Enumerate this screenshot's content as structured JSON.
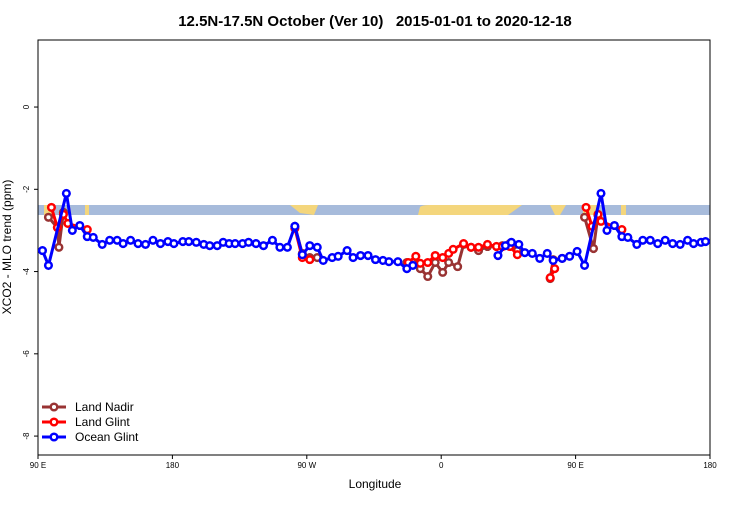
{
  "chart_data": {
    "type": "line",
    "title": "12.5N-17.5N October (Ver 10)   2015-01-01 to 2020-12-18",
    "x_label": "Longitude",
    "y_label": "XCO2 - MLO trend (ppm)",
    "xlim": [
      90,
      540
    ],
    "ylim": [
      -8.46,
      1.63
    ],
    "xticks": [
      {
        "value": 90,
        "label": "90 E"
      },
      180,
      {
        "value": 270,
        "label": "90 W"
      },
      {
        "value": 360,
        "label": "0"
      },
      {
        "value": 450,
        "label": "90 E"
      },
      {
        "value": 540,
        "label": "180"
      }
    ],
    "yticks": [
      0,
      -2,
      -4,
      -6,
      -8
    ],
    "legend": "bottom-left",
    "series": [
      {
        "name": "Land Nadir",
        "color": "#993333",
        "x": [
          97,
          103,
          104,
          107,
          null,
          262,
          267,
          272,
          277,
          null,
          337,
          341,
          346,
          351,
          356,
          361,
          365,
          371,
          375,
          380,
          385,
          391,
          401,
          406,
          411,
          null,
          433,
          435,
          441,
          null,
          456,
          462,
          465
        ],
        "values": [
          -2.68,
          -2.93,
          -3.41,
          -2.56,
          null,
          -2.9,
          -3.56,
          -3.66,
          -3.66,
          null,
          -3.78,
          -3.78,
          -3.93,
          -4.12,
          -3.78,
          -4.02,
          -3.78,
          -3.88,
          -3.34,
          -3.41,
          -3.49,
          -3.39,
          -3.37,
          -3.32,
          -3.49,
          null,
          -4.17,
          -3.71,
          -3.68,
          null,
          -2.68,
          -3.44,
          -2.63
        ]
      },
      {
        "name": "Land Glint",
        "color": "#ff0000",
        "x": [
          99,
          103,
          107,
          110,
          123,
          null,
          262,
          267,
          272,
          null,
          338,
          343,
          346,
          351,
          356,
          361,
          365,
          368,
          375,
          380,
          385,
          391,
          397,
          401,
          406,
          411,
          null,
          433,
          436,
          null,
          457,
          461,
          465,
          467,
          481
        ],
        "values": [
          -2.44,
          -2.93,
          -2.61,
          -2.83,
          -2.98,
          null,
          -2.95,
          -3.66,
          -3.71,
          null,
          -3.78,
          -3.63,
          -3.8,
          -3.78,
          -3.61,
          -3.66,
          -3.56,
          -3.46,
          -3.32,
          -3.41,
          -3.41,
          -3.34,
          -3.39,
          -3.39,
          -3.39,
          -3.59,
          null,
          -4.15,
          -3.93,
          null,
          -2.44,
          -2.9,
          -2.61,
          -2.78,
          -2.98
        ]
      },
      {
        "name": "Ocean Glint",
        "color": "#0000ff",
        "x": [
          93,
          97,
          109,
          113,
          118,
          123,
          127,
          133,
          138,
          143,
          147,
          152,
          157,
          162,
          167,
          172,
          177,
          181,
          187,
          191,
          196,
          201,
          205,
          210,
          214,
          218,
          222,
          227,
          231,
          236,
          241,
          247,
          252,
          257,
          262,
          267,
          272,
          277,
          281,
          287,
          291,
          297,
          301,
          306,
          311,
          316,
          321,
          325,
          331,
          337,
          341,
          null,
          398,
          403,
          407,
          412,
          416,
          421,
          426,
          431,
          435,
          441,
          446,
          451,
          456,
          467,
          471,
          476,
          481,
          485,
          491,
          495,
          500,
          505,
          510,
          515,
          520,
          525,
          529,
          534,
          537
        ],
        "values": [
          -3.49,
          -3.85,
          -2.1,
          -3.0,
          -2.88,
          -3.15,
          -3.17,
          -3.34,
          -3.24,
          -3.24,
          -3.32,
          -3.24,
          -3.32,
          -3.34,
          -3.24,
          -3.32,
          -3.27,
          -3.32,
          -3.27,
          -3.27,
          -3.29,
          -3.34,
          -3.37,
          -3.37,
          -3.29,
          -3.32,
          -3.32,
          -3.32,
          -3.29,
          -3.32,
          -3.37,
          -3.24,
          -3.41,
          -3.41,
          -2.9,
          -3.59,
          -3.37,
          -3.41,
          -3.73,
          -3.66,
          -3.63,
          -3.49,
          -3.66,
          -3.61,
          -3.61,
          -3.71,
          -3.73,
          -3.76,
          -3.76,
          -3.93,
          -3.85,
          null,
          -3.61,
          -3.37,
          -3.29,
          -3.34,
          -3.54,
          -3.56,
          -3.68,
          -3.56,
          -3.73,
          -3.68,
          -3.63,
          -3.51,
          -3.85,
          -2.1,
          -3.0,
          -2.88,
          -3.15,
          -3.17,
          -3.34,
          -3.24,
          -3.24,
          -3.32,
          -3.24,
          -3.32,
          -3.34,
          -3.24,
          -3.32,
          -3.29,
          -3.27
        ]
      }
    ]
  }
}
